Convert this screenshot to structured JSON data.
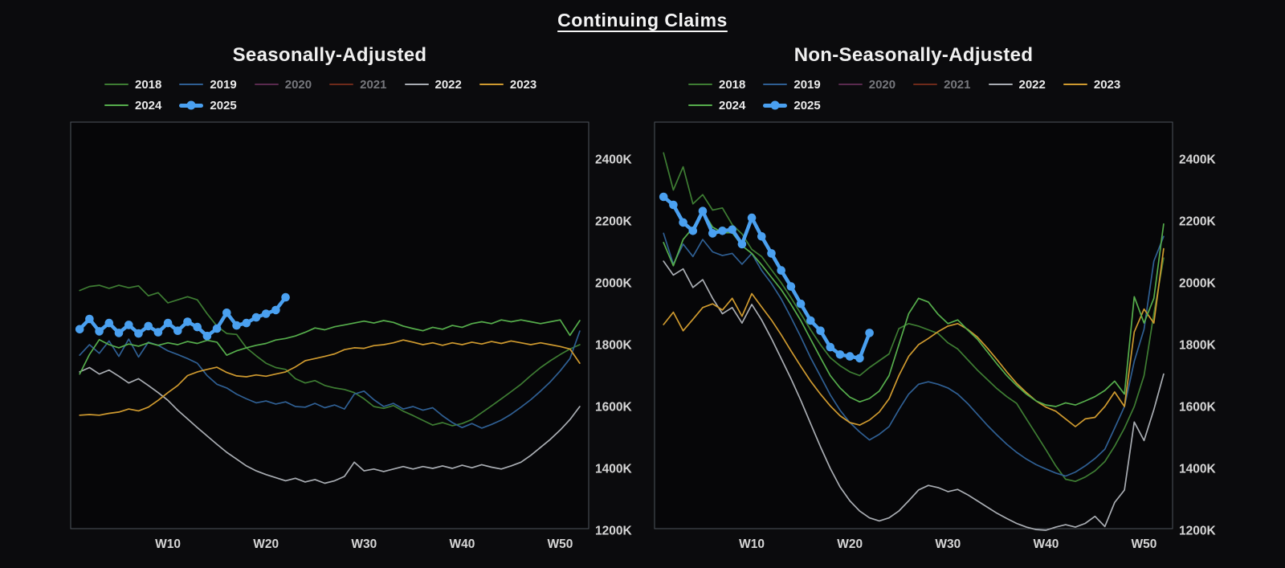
{
  "page": {
    "title": "Continuing Claims"
  },
  "colors": {
    "background": "#0b0b0d",
    "plot_bg": "#060608",
    "plot_border": "#4e545c",
    "tick_text": "#d6d6d6",
    "legend_text": "#ebebeb",
    "legend_muted_text": "#76777c",
    "accent_2025": "#4aa0f0"
  },
  "y_axis": {
    "ticks": [
      {
        "label": "2400K",
        "value": 2400
      },
      {
        "label": "2200K",
        "value": 2200
      },
      {
        "label": "2000K",
        "value": 2000
      },
      {
        "label": "1800K",
        "value": 1800
      },
      {
        "label": "1600K",
        "value": 1600
      },
      {
        "label": "1400K",
        "value": 1400
      },
      {
        "label": "1200K",
        "value": 1200
      }
    ]
  },
  "x_axis": {
    "ticks": [
      {
        "label": "W10",
        "week": 10
      },
      {
        "label": "W20",
        "week": 20
      },
      {
        "label": "W30",
        "week": 30
      },
      {
        "label": "W40",
        "week": 40
      },
      {
        "label": "W50",
        "week": 50
      }
    ]
  },
  "chart_data": [
    {
      "type": "line",
      "title": "Seasonally-Adjusted",
      "x_unit": "week_of_year",
      "ylim": [
        1205,
        2519
      ],
      "grid": false,
      "legend_position": "top-left",
      "series": [
        {
          "name": "2018",
          "color": "#3e7d33",
          "muted": false,
          "thick": false,
          "visible": true,
          "start_week": 1,
          "values": [
            1975,
            1988,
            1992,
            1982,
            1992,
            1984,
            1990,
            1958,
            1968,
            1935,
            1945,
            1955,
            1945,
            1900,
            1860,
            1836,
            1833,
            1790,
            1764,
            1740,
            1726,
            1720,
            1690,
            1676,
            1684,
            1668,
            1660,
            1655,
            1645,
            1625,
            1600,
            1594,
            1603,
            1585,
            1571,
            1555,
            1540,
            1548,
            1538,
            1545,
            1558,
            1580,
            1602,
            1625,
            1648,
            1672,
            1700,
            1726,
            1748,
            1768,
            1786,
            1800
          ]
        },
        {
          "name": "2019",
          "color": "#2f5f93",
          "muted": false,
          "thick": false,
          "visible": true,
          "start_week": 1,
          "values": [
            1766,
            1800,
            1772,
            1812,
            1762,
            1818,
            1760,
            1808,
            1798,
            1780,
            1768,
            1755,
            1740,
            1700,
            1672,
            1660,
            1640,
            1625,
            1612,
            1618,
            1608,
            1615,
            1600,
            1598,
            1610,
            1596,
            1605,
            1592,
            1640,
            1650,
            1622,
            1600,
            1610,
            1592,
            1600,
            1588,
            1596,
            1570,
            1548,
            1532,
            1545,
            1530,
            1542,
            1556,
            1575,
            1598,
            1622,
            1650,
            1680,
            1715,
            1755,
            1844
          ]
        },
        {
          "name": "2020",
          "color": "#5a2a4e",
          "muted": true,
          "thick": false,
          "visible": false,
          "start_week": 1,
          "values": []
        },
        {
          "name": "2021",
          "color": "#6e2a1a",
          "muted": true,
          "thick": false,
          "visible": false,
          "start_week": 1,
          "values": []
        },
        {
          "name": "2022",
          "color": "#a9adb3",
          "muted": false,
          "thick": false,
          "visible": true,
          "start_week": 1,
          "values": [
            1712,
            1726,
            1705,
            1718,
            1698,
            1676,
            1690,
            1668,
            1645,
            1620,
            1588,
            1560,
            1532,
            1505,
            1478,
            1452,
            1430,
            1408,
            1392,
            1380,
            1370,
            1360,
            1368,
            1356,
            1364,
            1352,
            1360,
            1374,
            1420,
            1392,
            1398,
            1390,
            1398,
            1406,
            1398,
            1406,
            1400,
            1408,
            1400,
            1410,
            1402,
            1412,
            1404,
            1398,
            1408,
            1420,
            1442,
            1468,
            1494,
            1524,
            1558,
            1600
          ]
        },
        {
          "name": "2023",
          "color": "#cf9a2f",
          "muted": false,
          "thick": false,
          "visible": true,
          "start_week": 1,
          "values": [
            1572,
            1574,
            1572,
            1578,
            1582,
            1592,
            1586,
            1598,
            1620,
            1645,
            1668,
            1700,
            1712,
            1720,
            1727,
            1710,
            1699,
            1696,
            1702,
            1698,
            1705,
            1712,
            1728,
            1748,
            1755,
            1762,
            1770,
            1784,
            1790,
            1788,
            1797,
            1800,
            1806,
            1815,
            1808,
            1800,
            1806,
            1798,
            1806,
            1800,
            1808,
            1802,
            1810,
            1804,
            1812,
            1806,
            1800,
            1806,
            1800,
            1794,
            1786,
            1740
          ]
        },
        {
          "name": "2024",
          "color": "#56ae4c",
          "muted": false,
          "thick": false,
          "visible": true,
          "start_week": 1,
          "values": [
            1705,
            1768,
            1816,
            1800,
            1790,
            1802,
            1795,
            1806,
            1798,
            1806,
            1800,
            1810,
            1804,
            1814,
            1808,
            1766,
            1780,
            1790,
            1798,
            1804,
            1815,
            1820,
            1828,
            1840,
            1854,
            1848,
            1858,
            1864,
            1870,
            1876,
            1870,
            1878,
            1872,
            1860,
            1852,
            1845,
            1856,
            1850,
            1862,
            1856,
            1868,
            1874,
            1868,
            1880,
            1874,
            1880,
            1874,
            1868,
            1874,
            1880,
            1830,
            1878
          ]
        },
        {
          "name": "2025",
          "color": "#4aa0f0",
          "muted": false,
          "thick": true,
          "visible": true,
          "start_week": 1,
          "values": [
            1850,
            1883,
            1843,
            1870,
            1838,
            1864,
            1836,
            1860,
            1840,
            1870,
            1845,
            1874,
            1857,
            1828,
            1852,
            1903,
            1862,
            1870,
            1888,
            1900,
            1912,
            1953
          ]
        }
      ]
    },
    {
      "type": "line",
      "title": "Non-Seasonally-Adjusted",
      "x_unit": "week_of_year",
      "ylim": [
        1205,
        2519
      ],
      "grid": false,
      "legend_position": "top-left",
      "series": [
        {
          "name": "2018",
          "color": "#3e7d33",
          "muted": false,
          "thick": false,
          "visible": true,
          "start_week": 1,
          "values": [
            2420,
            2300,
            2375,
            2255,
            2285,
            2235,
            2242,
            2188,
            2158,
            2108,
            2085,
            2042,
            2000,
            1952,
            1900,
            1848,
            1800,
            1758,
            1732,
            1712,
            1700,
            1726,
            1748,
            1770,
            1852,
            1868,
            1860,
            1848,
            1836,
            1806,
            1786,
            1752,
            1718,
            1688,
            1658,
            1632,
            1610,
            1560,
            1510,
            1460,
            1408,
            1365,
            1358,
            1372,
            1392,
            1422,
            1472,
            1530,
            1600,
            1700,
            1900,
            2080
          ]
        },
        {
          "name": "2019",
          "color": "#2f5f93",
          "muted": false,
          "thick": false,
          "visible": true,
          "start_week": 1,
          "values": [
            2160,
            2060,
            2125,
            2085,
            2140,
            2100,
            2088,
            2095,
            2060,
            2095,
            2040,
            1998,
            1948,
            1888,
            1825,
            1758,
            1698,
            1638,
            1588,
            1548,
            1518,
            1492,
            1510,
            1535,
            1590,
            1640,
            1672,
            1680,
            1672,
            1660,
            1640,
            1610,
            1575,
            1540,
            1508,
            1478,
            1452,
            1430,
            1412,
            1398,
            1385,
            1375,
            1388,
            1408,
            1432,
            1462,
            1530,
            1600,
            1746,
            1850,
            2070,
            2150
          ]
        },
        {
          "name": "2020",
          "color": "#5a2a4e",
          "muted": true,
          "thick": false,
          "visible": false,
          "start_week": 1,
          "values": []
        },
        {
          "name": "2021",
          "color": "#6e2a1a",
          "muted": true,
          "thick": false,
          "visible": false,
          "start_week": 1,
          "values": []
        },
        {
          "name": "2022",
          "color": "#a9adb3",
          "muted": false,
          "thick": false,
          "visible": true,
          "start_week": 1,
          "values": [
            2070,
            2025,
            2045,
            1985,
            2010,
            1950,
            1900,
            1920,
            1870,
            1930,
            1880,
            1820,
            1755,
            1690,
            1620,
            1545,
            1470,
            1400,
            1340,
            1295,
            1262,
            1240,
            1230,
            1240,
            1262,
            1295,
            1330,
            1345,
            1338,
            1325,
            1332,
            1315,
            1295,
            1275,
            1255,
            1238,
            1222,
            1210,
            1202,
            1200,
            1210,
            1218,
            1210,
            1222,
            1245,
            1212,
            1290,
            1330,
            1550,
            1490,
            1590,
            1705
          ]
        },
        {
          "name": "2023",
          "color": "#cf9a2f",
          "muted": false,
          "thick": false,
          "visible": true,
          "start_week": 1,
          "values": [
            1865,
            1905,
            1845,
            1882,
            1920,
            1932,
            1912,
            1950,
            1892,
            1965,
            1922,
            1880,
            1832,
            1780,
            1730,
            1682,
            1640,
            1602,
            1570,
            1548,
            1540,
            1556,
            1582,
            1625,
            1700,
            1762,
            1800,
            1820,
            1842,
            1860,
            1868,
            1850,
            1825,
            1790,
            1752,
            1712,
            1675,
            1645,
            1618,
            1598,
            1585,
            1560,
            1535,
            1560,
            1565,
            1600,
            1647,
            1600,
            1841,
            1915,
            1870,
            2110
          ]
        },
        {
          "name": "2024",
          "color": "#56ae4c",
          "muted": false,
          "thick": false,
          "visible": true,
          "start_week": 1,
          "values": [
            2130,
            2055,
            2140,
            2178,
            2232,
            2180,
            2162,
            2162,
            2120,
            2095,
            2058,
            2018,
            1978,
            1930,
            1878,
            1818,
            1758,
            1700,
            1660,
            1630,
            1615,
            1626,
            1650,
            1700,
            1800,
            1900,
            1950,
            1938,
            1898,
            1868,
            1880,
            1848,
            1818,
            1778,
            1738,
            1700,
            1668,
            1640,
            1618,
            1605,
            1600,
            1612,
            1605,
            1618,
            1632,
            1652,
            1682,
            1640,
            1955,
            1870,
            1950,
            2190
          ]
        },
        {
          "name": "2025",
          "color": "#4aa0f0",
          "muted": false,
          "thick": true,
          "visible": true,
          "start_week": 1,
          "values": [
            2278,
            2252,
            2195,
            2168,
            2232,
            2160,
            2168,
            2172,
            2125,
            2210,
            2150,
            2095,
            2040,
            1988,
            1932,
            1878,
            1845,
            1792,
            1768,
            1762,
            1756,
            1838
          ]
        }
      ]
    }
  ]
}
